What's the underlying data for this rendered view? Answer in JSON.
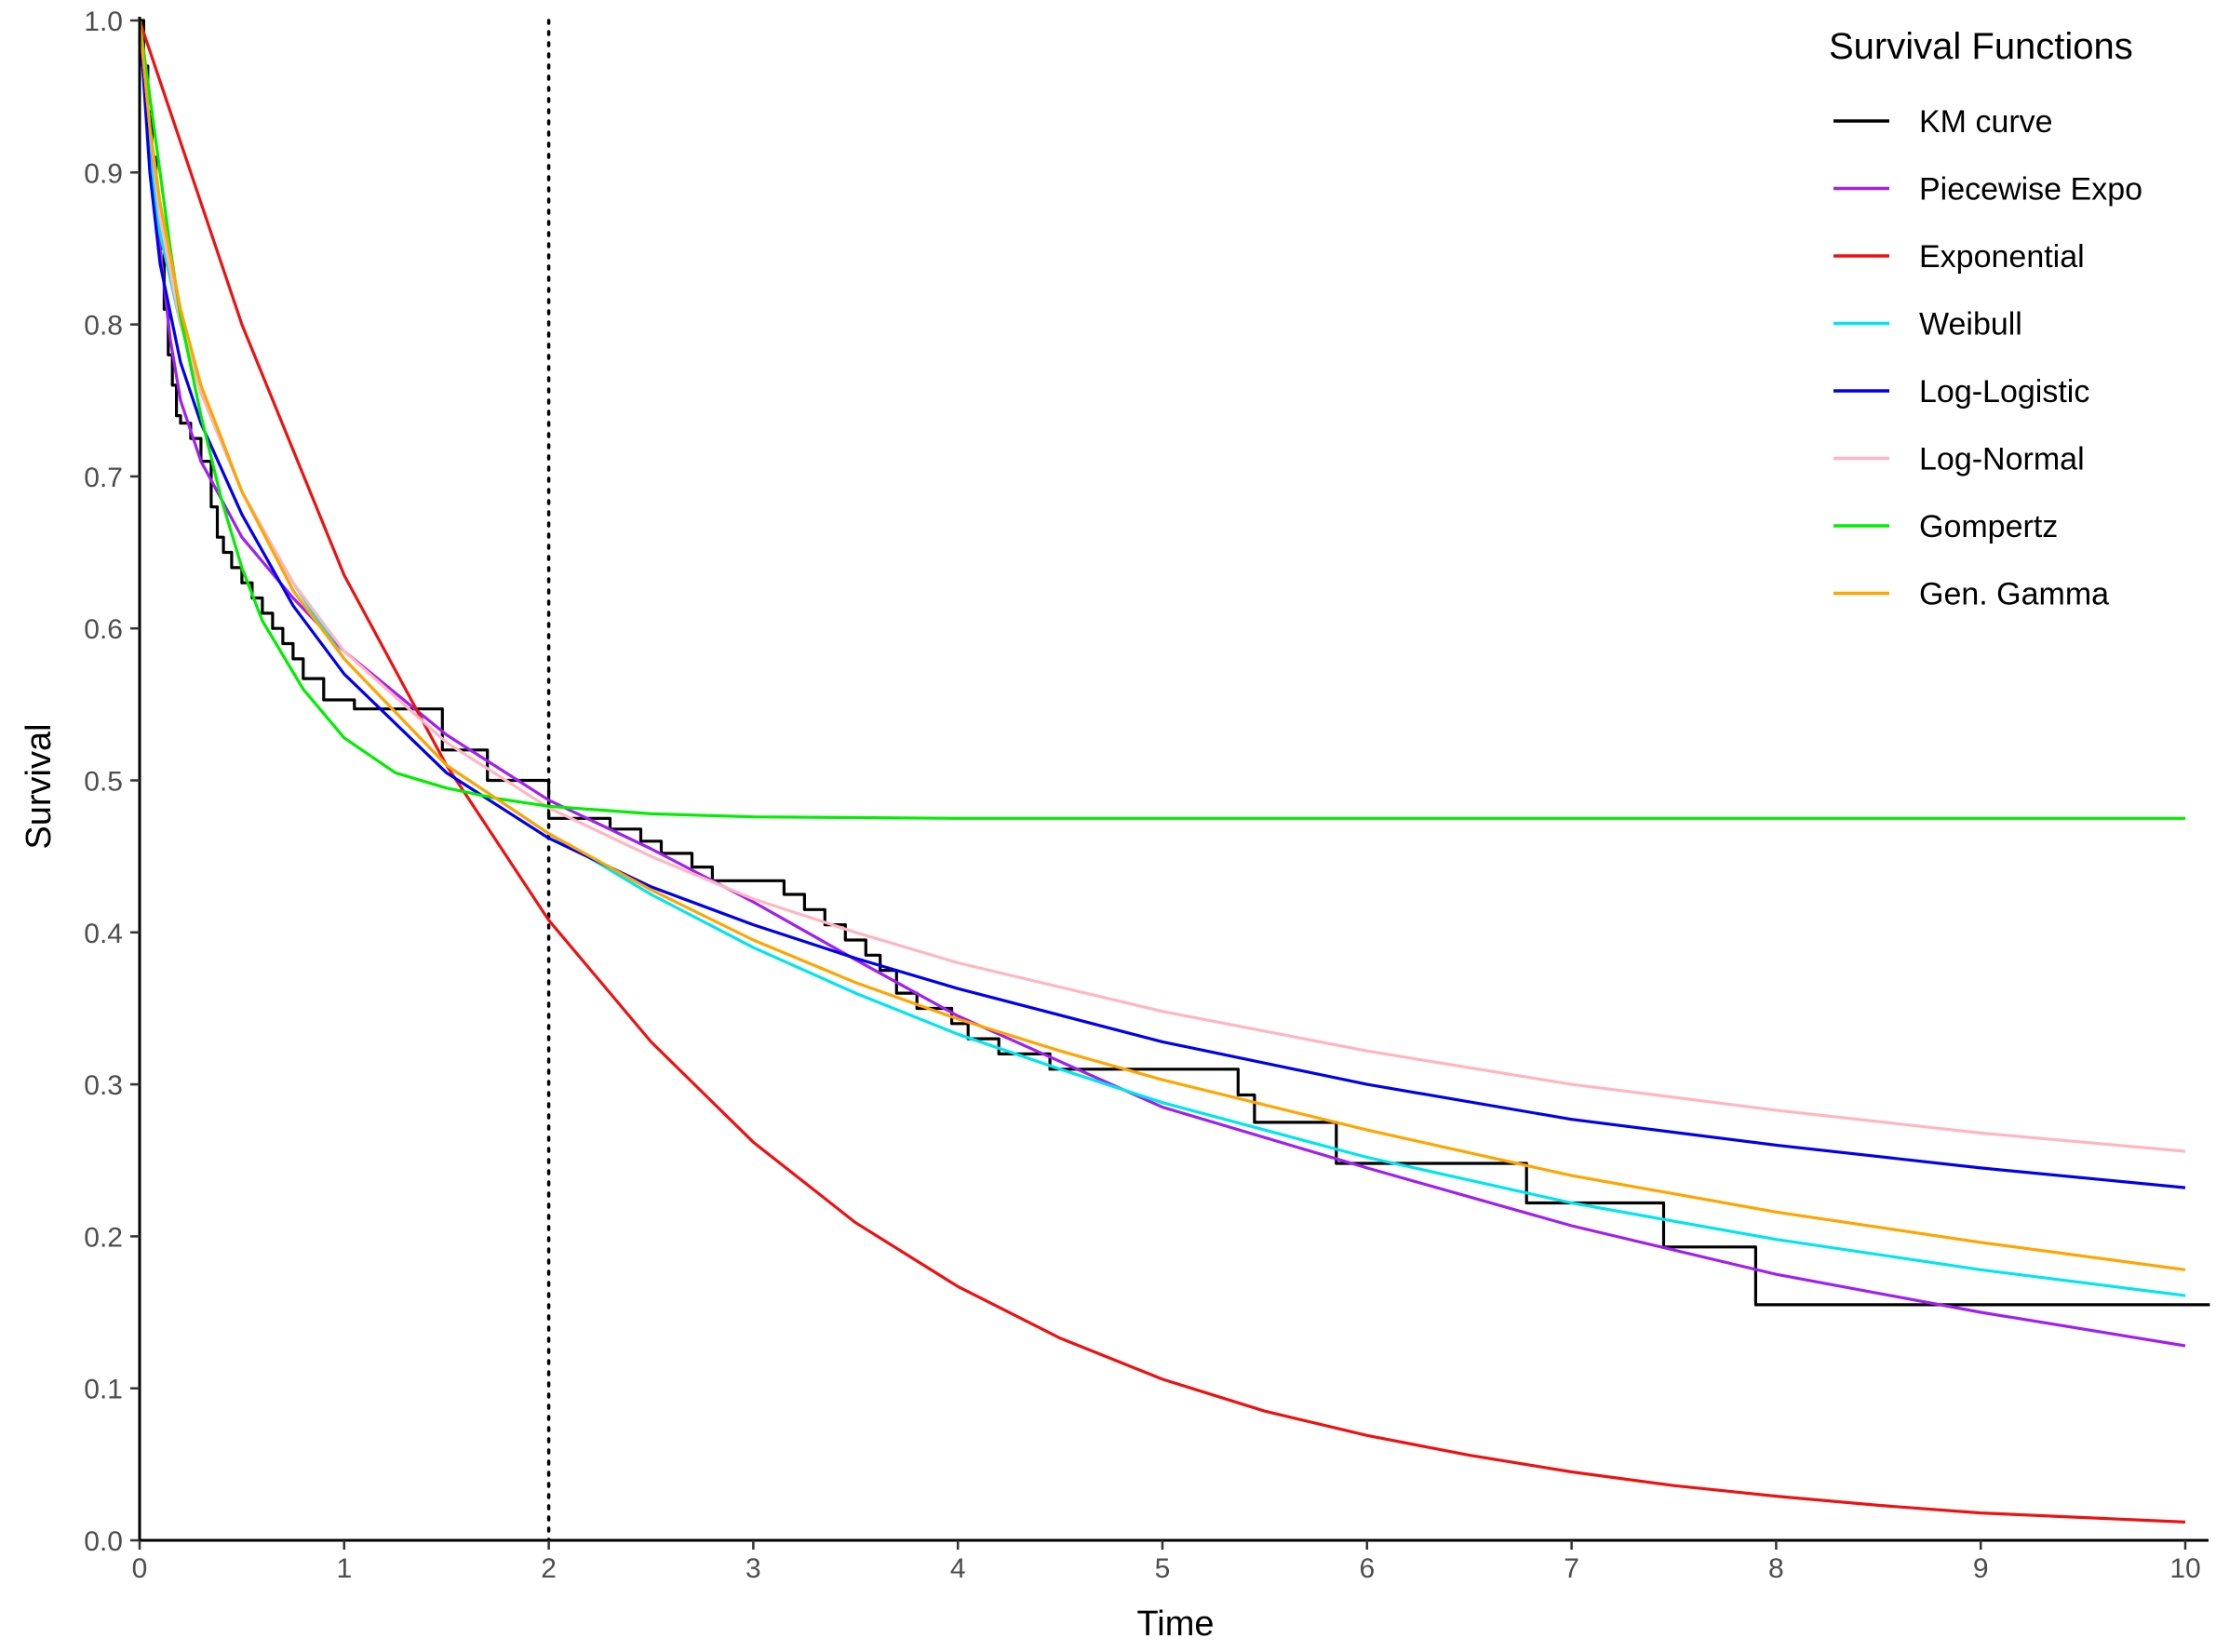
{
  "chart_data": {
    "type": "line",
    "xlabel": "Time",
    "ylabel": "Survival",
    "xlim": [
      0,
      10.12
    ],
    "ylim": [
      0,
      1.0
    ],
    "x_ticks": [
      "0",
      "1",
      "2",
      "3",
      "4",
      "5",
      "6",
      "7",
      "8",
      "9",
      "10"
    ],
    "y_ticks": [
      "0.0",
      "0.1",
      "0.2",
      "0.3",
      "0.4",
      "0.5",
      "0.6",
      "0.7",
      "0.8",
      "0.9",
      "1.0"
    ],
    "grid": false,
    "reference_line": {
      "x": 2,
      "style": "dotted"
    },
    "legend": {
      "title": "Survival Functions",
      "position": "top-right",
      "entries": [
        "KM curve",
        "Piecewise Expo",
        "Exponential",
        "Weibull",
        "Log-Logistic",
        "Log-Normal",
        "Gompertz",
        "Gen. Gamma"
      ]
    },
    "series": [
      {
        "name": "KM curve",
        "color": "#000000",
        "step": true,
        "x": [
          0,
          0.02,
          0.04,
          0.06,
          0.08,
          0.1,
          0.12,
          0.14,
          0.16,
          0.18,
          0.2,
          0.25,
          0.3,
          0.35,
          0.38,
          0.41,
          0.45,
          0.5,
          0.55,
          0.6,
          0.65,
          0.7,
          0.75,
          0.8,
          0.9,
          1.05,
          1.17,
          1.48,
          1.7,
          1.8,
          2.0,
          2.3,
          2.45,
          2.55,
          2.7,
          2.8,
          3.15,
          3.25,
          3.35,
          3.45,
          3.55,
          3.62,
          3.7,
          3.8,
          3.97,
          4.05,
          4.2,
          4.45,
          5.37,
          5.45,
          5.85,
          6.78,
          7.45,
          7.9,
          10.12
        ],
        "y": [
          1.0,
          0.97,
          0.94,
          0.91,
          0.88,
          0.85,
          0.81,
          0.78,
          0.76,
          0.74,
          0.735,
          0.725,
          0.71,
          0.68,
          0.66,
          0.65,
          0.64,
          0.63,
          0.62,
          0.61,
          0.6,
          0.59,
          0.58,
          0.567,
          0.553,
          0.547,
          0.547,
          0.52,
          0.5,
          0.5,
          0.475,
          0.468,
          0.46,
          0.452,
          0.443,
          0.434,
          0.425,
          0.415,
          0.405,
          0.395,
          0.385,
          0.375,
          0.36,
          0.35,
          0.34,
          0.33,
          0.32,
          0.31,
          0.293,
          0.275,
          0.248,
          0.222,
          0.193,
          0.155,
          0.155
        ]
      },
      {
        "name": "Piecewise Expo",
        "color": "#a020f0",
        "x": [
          0,
          0.05,
          0.1,
          0.15,
          0.2,
          0.3,
          0.5,
          0.75,
          1.0,
          1.5,
          2,
          2.5,
          3,
          3.5,
          4,
          4.5,
          5,
          6,
          7,
          8,
          9,
          10
        ],
        "y": [
          1.0,
          0.92,
          0.85,
          0.79,
          0.75,
          0.71,
          0.66,
          0.62,
          0.585,
          0.53,
          0.487,
          0.455,
          0.42,
          0.382,
          0.345,
          0.315,
          0.285,
          0.245,
          0.207,
          0.175,
          0.15,
          0.128
        ]
      },
      {
        "name": "Exponential",
        "color": "#ee1111",
        "x": [
          0,
          0.5,
          1,
          1.5,
          2,
          2.5,
          3,
          3.5,
          4,
          4.5,
          5,
          5.5,
          6,
          6.5,
          7,
          7.5,
          8,
          8.5,
          9,
          9.5,
          10
        ],
        "y": [
          1.0,
          0.8,
          0.635,
          0.51,
          0.408,
          0.328,
          0.262,
          0.209,
          0.167,
          0.133,
          0.106,
          0.085,
          0.069,
          0.056,
          0.045,
          0.036,
          0.029,
          0.023,
          0.018,
          0.015,
          0.012
        ]
      },
      {
        "name": "Weibull",
        "color": "#00e5ee",
        "x": [
          0,
          0.05,
          0.1,
          0.2,
          0.3,
          0.5,
          0.75,
          1.0,
          1.5,
          2,
          2.5,
          3,
          3.5,
          4,
          4.5,
          5,
          6,
          7,
          8,
          9,
          10
        ],
        "y": [
          1.0,
          0.91,
          0.86,
          0.8,
          0.755,
          0.69,
          0.63,
          0.58,
          0.51,
          0.465,
          0.425,
          0.39,
          0.36,
          0.333,
          0.31,
          0.288,
          0.252,
          0.222,
          0.198,
          0.178,
          0.161
        ]
      },
      {
        "name": "Log-Logistic",
        "color": "#0000ee",
        "x": [
          0,
          0.05,
          0.1,
          0.2,
          0.3,
          0.5,
          0.75,
          1.0,
          1.5,
          2,
          2.5,
          3,
          3.5,
          4,
          5,
          6,
          7,
          8,
          9,
          10
        ],
        "y": [
          1.0,
          0.9,
          0.84,
          0.775,
          0.735,
          0.675,
          0.615,
          0.57,
          0.505,
          0.462,
          0.43,
          0.405,
          0.383,
          0.363,
          0.328,
          0.3,
          0.277,
          0.26,
          0.245,
          0.232
        ]
      },
      {
        "name": "Log-Normal",
        "color": "#ffb6c1",
        "x": [
          0,
          0.05,
          0.1,
          0.2,
          0.3,
          0.5,
          0.75,
          1.0,
          1.5,
          2,
          2.5,
          3,
          3.5,
          4,
          5,
          6,
          7,
          8,
          9,
          10
        ],
        "y": [
          1.0,
          0.93,
          0.87,
          0.8,
          0.755,
          0.69,
          0.63,
          0.585,
          0.525,
          0.482,
          0.45,
          0.422,
          0.4,
          0.38,
          0.348,
          0.322,
          0.3,
          0.283,
          0.268,
          0.256
        ]
      },
      {
        "name": "Gompertz",
        "color": "#00ee00",
        "x": [
          0,
          0.05,
          0.1,
          0.15,
          0.2,
          0.3,
          0.4,
          0.5,
          0.6,
          0.8,
          1.0,
          1.25,
          1.5,
          1.75,
          2,
          2.5,
          3,
          4,
          5,
          6,
          8,
          10
        ],
        "y": [
          1.0,
          0.95,
          0.9,
          0.85,
          0.805,
          0.74,
          0.685,
          0.64,
          0.605,
          0.56,
          0.528,
          0.505,
          0.495,
          0.488,
          0.483,
          0.478,
          0.476,
          0.475,
          0.475,
          0.475,
          0.475,
          0.475
        ]
      },
      {
        "name": "Gen. Gamma",
        "color": "#ffa500",
        "x": [
          0,
          0.05,
          0.1,
          0.2,
          0.3,
          0.5,
          0.75,
          1.0,
          1.5,
          2,
          2.5,
          3,
          3.5,
          4,
          4.5,
          5,
          6,
          7,
          8,
          9,
          10
        ],
        "y": [
          1.0,
          0.93,
          0.88,
          0.81,
          0.76,
          0.69,
          0.625,
          0.58,
          0.51,
          0.465,
          0.428,
          0.395,
          0.367,
          0.343,
          0.322,
          0.303,
          0.27,
          0.24,
          0.216,
          0.196,
          0.178
        ]
      }
    ]
  }
}
